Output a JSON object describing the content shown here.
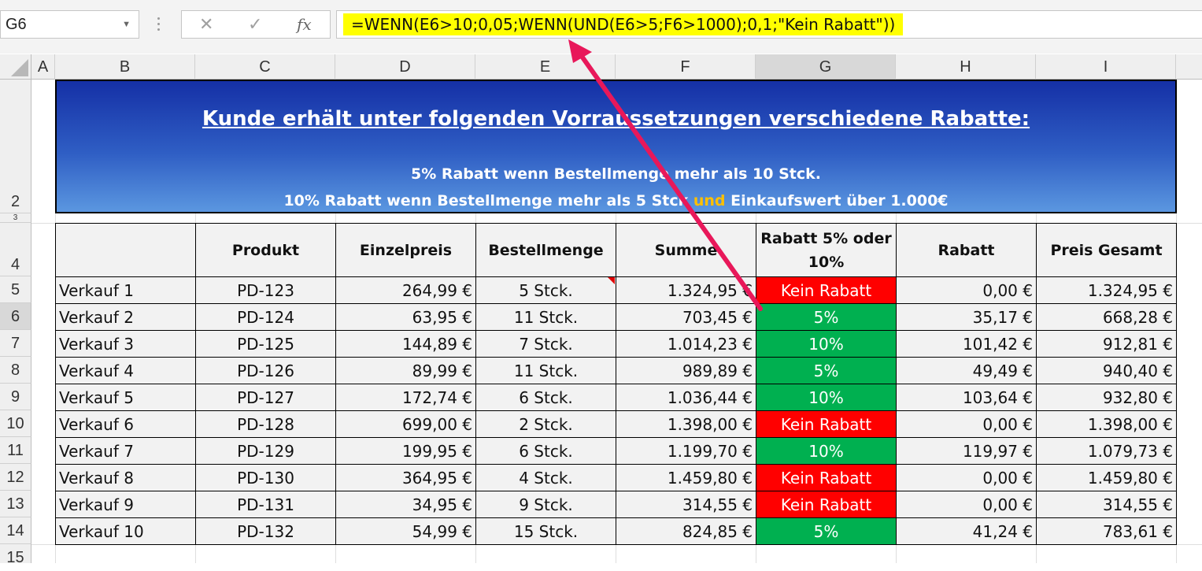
{
  "namebox": "G6",
  "formula_bar": {
    "cancel_glyph": "✕",
    "enter_glyph": "✓",
    "fx_glyph": "fx",
    "formula": "=WENN(E6>10;0,05;WENN(UND(E6>5;F6>1000);0,1;\"Kein Rabatt\"))"
  },
  "columns": [
    "A",
    "B",
    "C",
    "D",
    "E",
    "F",
    "G",
    "H",
    "I"
  ],
  "row_numbers": [
    "2",
    "3",
    "4",
    "5",
    "6",
    "7",
    "8",
    "9",
    "10",
    "11",
    "12",
    "13",
    "14",
    "15"
  ],
  "banner": {
    "title": "Kunde erhält unter folgenden Vorraussetzungen verschiedene Rabatte:",
    "line1": "5% Rabatt wenn Bestellmenge mehr als 10 Stck.",
    "line2_a": "10% Rabatt wenn Bestellmenge mehr als 5 Stck ",
    "line2_hl": "und",
    "line2_b": " Einkaufswert über 1.000€"
  },
  "table": {
    "headers": [
      "",
      "Produkt",
      "Einzelpreis",
      "Bestellmenge",
      "Summe",
      "Rabatt 5% oder 10%",
      "Rabatt",
      "Preis Gesamt"
    ],
    "rows": [
      {
        "verkauf": "Verkauf 1",
        "produkt": "PD-123",
        "einzelpreis": "264,99 €",
        "menge": "5 Stck.",
        "summe": "1.324,95 €",
        "rabatt_typ": "Kein Rabatt",
        "rabatt": "0,00 €",
        "gesamt": "1.324,95 €"
      },
      {
        "verkauf": "Verkauf 2",
        "produkt": "PD-124",
        "einzelpreis": "63,95 €",
        "menge": "11 Stck.",
        "summe": "703,45 €",
        "rabatt_typ": "5%",
        "rabatt": "35,17 €",
        "gesamt": "668,28 €"
      },
      {
        "verkauf": "Verkauf 3",
        "produkt": "PD-125",
        "einzelpreis": "144,89 €",
        "menge": "7 Stck.",
        "summe": "1.014,23 €",
        "rabatt_typ": "10%",
        "rabatt": "101,42 €",
        "gesamt": "912,81 €"
      },
      {
        "verkauf": "Verkauf 4",
        "produkt": "PD-126",
        "einzelpreis": "89,99 €",
        "menge": "11 Stck.",
        "summe": "989,89 €",
        "rabatt_typ": "5%",
        "rabatt": "49,49 €",
        "gesamt": "940,40 €"
      },
      {
        "verkauf": "Verkauf 5",
        "produkt": "PD-127",
        "einzelpreis": "172,74 €",
        "menge": "6 Stck.",
        "summe": "1.036,44 €",
        "rabatt_typ": "10%",
        "rabatt": "103,64 €",
        "gesamt": "932,80 €"
      },
      {
        "verkauf": "Verkauf 6",
        "produkt": "PD-128",
        "einzelpreis": "699,00 €",
        "menge": "2 Stck.",
        "summe": "1.398,00 €",
        "rabatt_typ": "Kein Rabatt",
        "rabatt": "0,00 €",
        "gesamt": "1.398,00 €"
      },
      {
        "verkauf": "Verkauf 7",
        "produkt": "PD-129",
        "einzelpreis": "199,95 €",
        "menge": "6 Stck.",
        "summe": "1.199,70 €",
        "rabatt_typ": "10%",
        "rabatt": "119,97 €",
        "gesamt": "1.079,73 €"
      },
      {
        "verkauf": "Verkauf 8",
        "produkt": "PD-130",
        "einzelpreis": "364,95 €",
        "menge": "4 Stck.",
        "summe": "1.459,80 €",
        "rabatt_typ": "Kein Rabatt",
        "rabatt": "0,00 €",
        "gesamt": "1.459,80 €"
      },
      {
        "verkauf": "Verkauf 9",
        "produkt": "PD-131",
        "einzelpreis": "34,95 €",
        "menge": "9 Stck.",
        "summe": "314,55 €",
        "rabatt_typ": "Kein Rabatt",
        "rabatt": "0,00 €",
        "gesamt": "314,55 €"
      },
      {
        "verkauf": "Verkauf 10",
        "produkt": "PD-132",
        "einzelpreis": "54,99 €",
        "menge": "15 Stck.",
        "summe": "824,85 €",
        "rabatt_typ": "5%",
        "rabatt": "41,24 €",
        "gesamt": "783,61 €"
      }
    ]
  },
  "colors": {
    "no_discount": "#ff0000",
    "discount": "#00b050",
    "formula_highlight": "#ffff00",
    "arrow": "#e8185a",
    "und_highlight": "#ffc000"
  },
  "icons": [
    "dropdown-arrow-icon",
    "cancel-icon",
    "enter-icon",
    "function-icon",
    "annotation-arrow-icon"
  ]
}
